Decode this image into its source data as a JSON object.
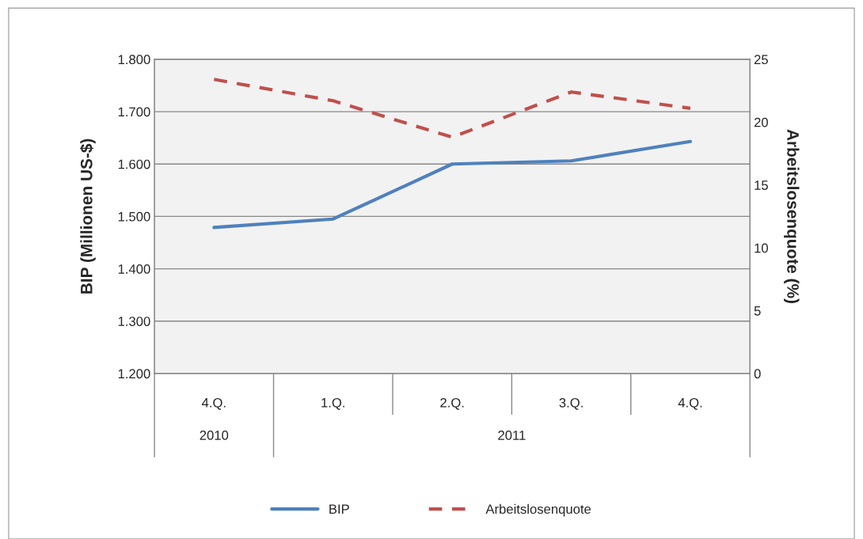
{
  "chart_data": {
    "type": "line",
    "categories": [
      "4.Q.",
      "1.Q.",
      "2.Q.",
      "3.Q.",
      "4.Q."
    ],
    "ylabel": "BIP (Millionen US-$)",
    "y2label": "Arbeitslosenquote (%)",
    "series": [
      {
        "name": "BIP",
        "color": "#4f81bd",
        "line_style": "solid",
        "values": [
          1479,
          1495,
          1600,
          1606,
          1643
        ]
      },
      {
        "name": "Arbeitslosenquote",
        "color": "#c0504d",
        "line_style": "dashed",
        "axis": "y2",
        "values": [
          23.4,
          21.7,
          18.8,
          22.4,
          21.1
        ]
      }
    ],
    "ylim": [
      1200,
      1800
    ],
    "yticks": [
      {
        "value": 1200,
        "label": "1.200"
      },
      {
        "value": 1300,
        "label": "1.300"
      },
      {
        "value": 1400,
        "label": "1.400"
      },
      {
        "value": 1500,
        "label": "1.500"
      },
      {
        "value": 1600,
        "label": "1.600"
      },
      {
        "value": 1700,
        "label": "1.700"
      },
      {
        "value": 1800,
        "label": "1.800"
      }
    ],
    "y2lim": [
      0,
      25
    ],
    "y2ticks": [
      0,
      5,
      10,
      15,
      20,
      25
    ],
    "annotations": [
      "2010",
      "2011"
    ],
    "grid": "y",
    "legend": "bottom",
    "marker": "none"
  }
}
